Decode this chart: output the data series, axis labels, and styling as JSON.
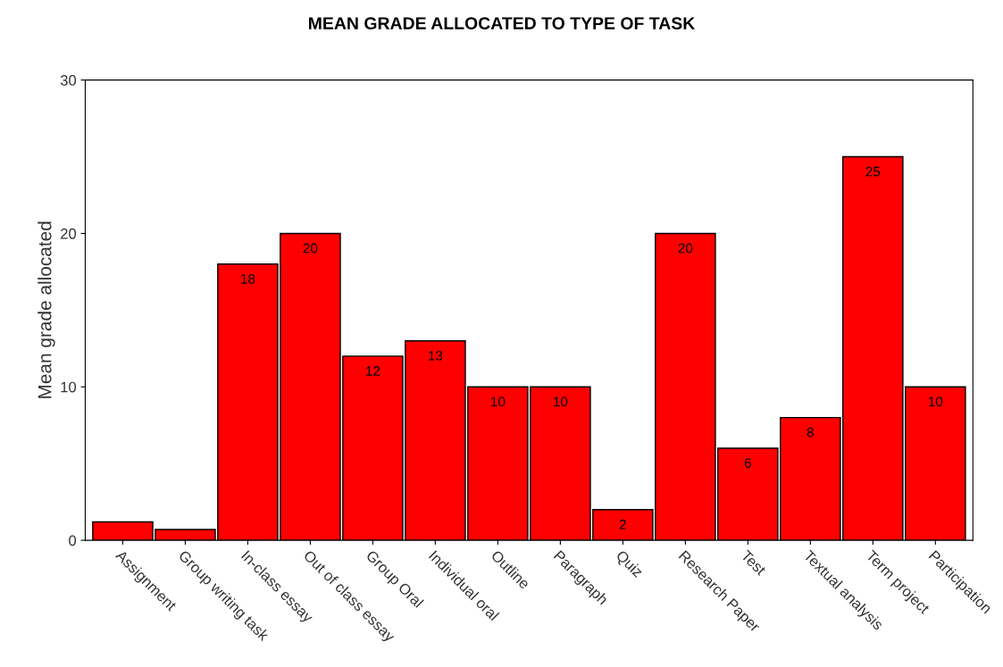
{
  "chart_data": {
    "type": "bar",
    "title": "MEAN GRADE ALLOCATED TO TYPE OF TASK",
    "ylabel": "Mean grade allocated",
    "categories": [
      "Assignment",
      "Group writing task",
      "In-class essay",
      "Out of class essay",
      "Group Oral",
      "Individual oral",
      "Outline",
      "Paragraph",
      "Quiz",
      "Research Paper",
      "Test",
      "Textual analysis",
      "Term project",
      "Participation"
    ],
    "values": [
      1.2,
      0.7,
      18,
      20,
      12,
      13,
      10,
      10,
      2,
      20,
      6,
      8,
      25,
      10
    ],
    "value_labels": [
      null,
      null,
      "18",
      "20",
      "12",
      "13",
      "10",
      "10",
      "2",
      "20",
      "6",
      "8",
      "25",
      "10"
    ],
    "color": "#ff0000",
    "ylim": [
      0,
      30
    ],
    "yticks": [
      0,
      10,
      20,
      30
    ],
    "grid": false
  }
}
